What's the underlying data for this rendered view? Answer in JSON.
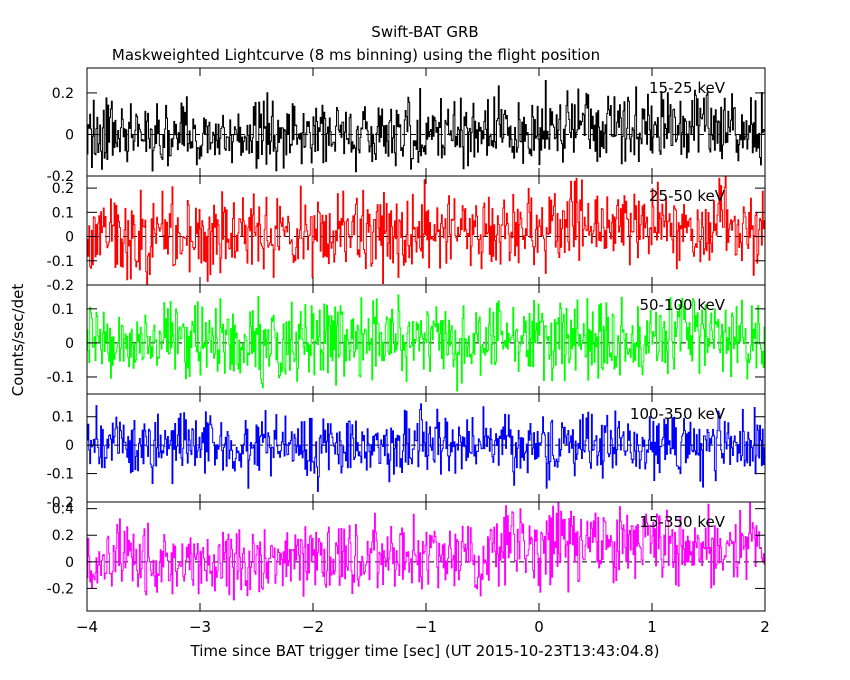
{
  "title": "Swift-BAT GRB",
  "subtitle": "Maskweighted Lightcurve (8 ms binning) using the flight position",
  "xlabel": "Time since BAT trigger time [sec] (UT 2015-10-23T13:43:04.8)",
  "ylabel": "Counts/sec/det",
  "chart_data": {
    "type": "line",
    "x_range": [
      -4,
      2
    ],
    "x_ticks": [
      -4,
      -3,
      -2,
      -1,
      0,
      1,
      2
    ],
    "bin_width_s": 0.008,
    "grid": false,
    "panels": [
      {
        "band": "15-25 keV",
        "color": "#000000",
        "ylim": [
          -0.2,
          0.32
        ],
        "yticks": [
          -0.2,
          0,
          0.2
        ],
        "ytick_labels": [
          "-0.2",
          "0",
          "0.2"
        ],
        "envelope": {
          "x": [
            -4,
            -3,
            -2,
            -1,
            0,
            1,
            2
          ],
          "mean": [
            0.0,
            0.0,
            0.0,
            0.01,
            0.03,
            0.04,
            0.04
          ],
          "amplitude": [
            0.1,
            0.1,
            0.1,
            0.1,
            0.11,
            0.11,
            0.11
          ]
        }
      },
      {
        "band": "25-50 keV",
        "color": "#ff0000",
        "ylim": [
          -0.2,
          0.25
        ],
        "yticks": [
          -0.2,
          -0.1,
          0,
          0.1,
          0.2
        ],
        "ytick_labels": [
          "-0.2",
          "-0.1",
          "0",
          "0.1",
          "0.2"
        ],
        "envelope": {
          "x": [
            -4,
            -3,
            -2,
            -1,
            0,
            1,
            2
          ],
          "mean": [
            0.0,
            0.0,
            0.01,
            0.02,
            0.04,
            0.05,
            0.04
          ],
          "amplitude": [
            0.1,
            0.1,
            0.1,
            0.1,
            0.1,
            0.1,
            0.1
          ]
        }
      },
      {
        "band": "50-100 keV",
        "color": "#00ff00",
        "ylim": [
          -0.15,
          0.17
        ],
        "yticks": [
          -0.1,
          0,
          0.1
        ],
        "ytick_labels": [
          "-0.1",
          "0",
          "0.1"
        ],
        "envelope": {
          "x": [
            -4,
            -3,
            -2,
            -1,
            0,
            1,
            2
          ],
          "mean": [
            0.0,
            0.0,
            0.0,
            0.01,
            0.02,
            0.02,
            0.02
          ],
          "amplitude": [
            0.07,
            0.07,
            0.07,
            0.07,
            0.07,
            0.07,
            0.07
          ]
        }
      },
      {
        "band": "100-350 keV",
        "color": "#0000ff",
        "ylim": [
          -0.2,
          0.18
        ],
        "yticks": [
          -0.2,
          -0.1,
          0,
          0.1
        ],
        "ytick_labels": [
          "-0.2",
          "-0.1",
          "0",
          "0.1"
        ],
        "envelope": {
          "x": [
            -4,
            -3,
            -2,
            -1,
            0,
            1,
            2
          ],
          "mean": [
            0.0,
            0.0,
            0.0,
            0.0,
            0.0,
            0.0,
            0.0
          ],
          "amplitude": [
            0.07,
            0.07,
            0.07,
            0.07,
            0.07,
            0.07,
            0.07
          ]
        }
      },
      {
        "band": "15-350 keV",
        "color": "#ff00ff",
        "ylim": [
          -0.37,
          0.45
        ],
        "yticks": [
          -0.2,
          0,
          0.2,
          0.4
        ],
        "ytick_labels": [
          "-0.2",
          "0",
          "0.2",
          "0.4"
        ],
        "envelope": {
          "x": [
            -4,
            -3,
            -2,
            -1,
            0,
            1,
            2
          ],
          "mean": [
            0.0,
            0.0,
            0.02,
            0.05,
            0.1,
            0.15,
            0.12
          ],
          "amplitude": [
            0.17,
            0.17,
            0.17,
            0.17,
            0.18,
            0.18,
            0.18
          ]
        }
      }
    ]
  }
}
